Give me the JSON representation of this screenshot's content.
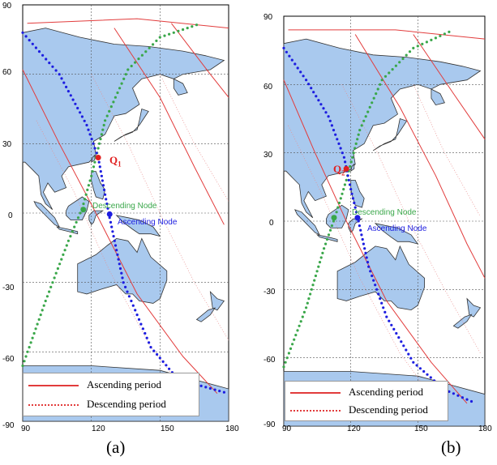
{
  "colors": {
    "ocean": "#ffffff",
    "land": "#a9c9ee",
    "coast": "#333333",
    "grid": "#555555",
    "asc": "#e23c3c",
    "desc": "#e88b8b",
    "green_track": "#3aa74a",
    "blue_track": "#1d1de0",
    "q_point": "#e02020"
  },
  "axis": {
    "y_ticks": [
      "90",
      "60",
      "30",
      "0",
      "-30",
      "-60",
      "-90"
    ],
    "x_ticks": [
      "90",
      "120",
      "150",
      "180"
    ]
  },
  "legend": {
    "ascending": "Ascending period",
    "descending": "Descending period"
  },
  "panels": [
    {
      "caption": "(a)",
      "q_main": "Q",
      "q_sub": "1",
      "q_coord": [
        123,
        24
      ],
      "descending_node": "Descending Node",
      "ascending_node": "Ascending Node",
      "green_node": [
        116.5,
        1.5
      ],
      "blue_node": [
        128,
        -0.5
      ]
    },
    {
      "caption": "(b)",
      "q_main": "Q",
      "q_sub": "2",
      "q_coord": [
        118,
        23
      ],
      "descending_node": "Descending Node",
      "ascending_node": "Ascending Node",
      "green_node": [
        112.5,
        1.5
      ],
      "blue_node": [
        123,
        1.5
      ]
    }
  ]
}
